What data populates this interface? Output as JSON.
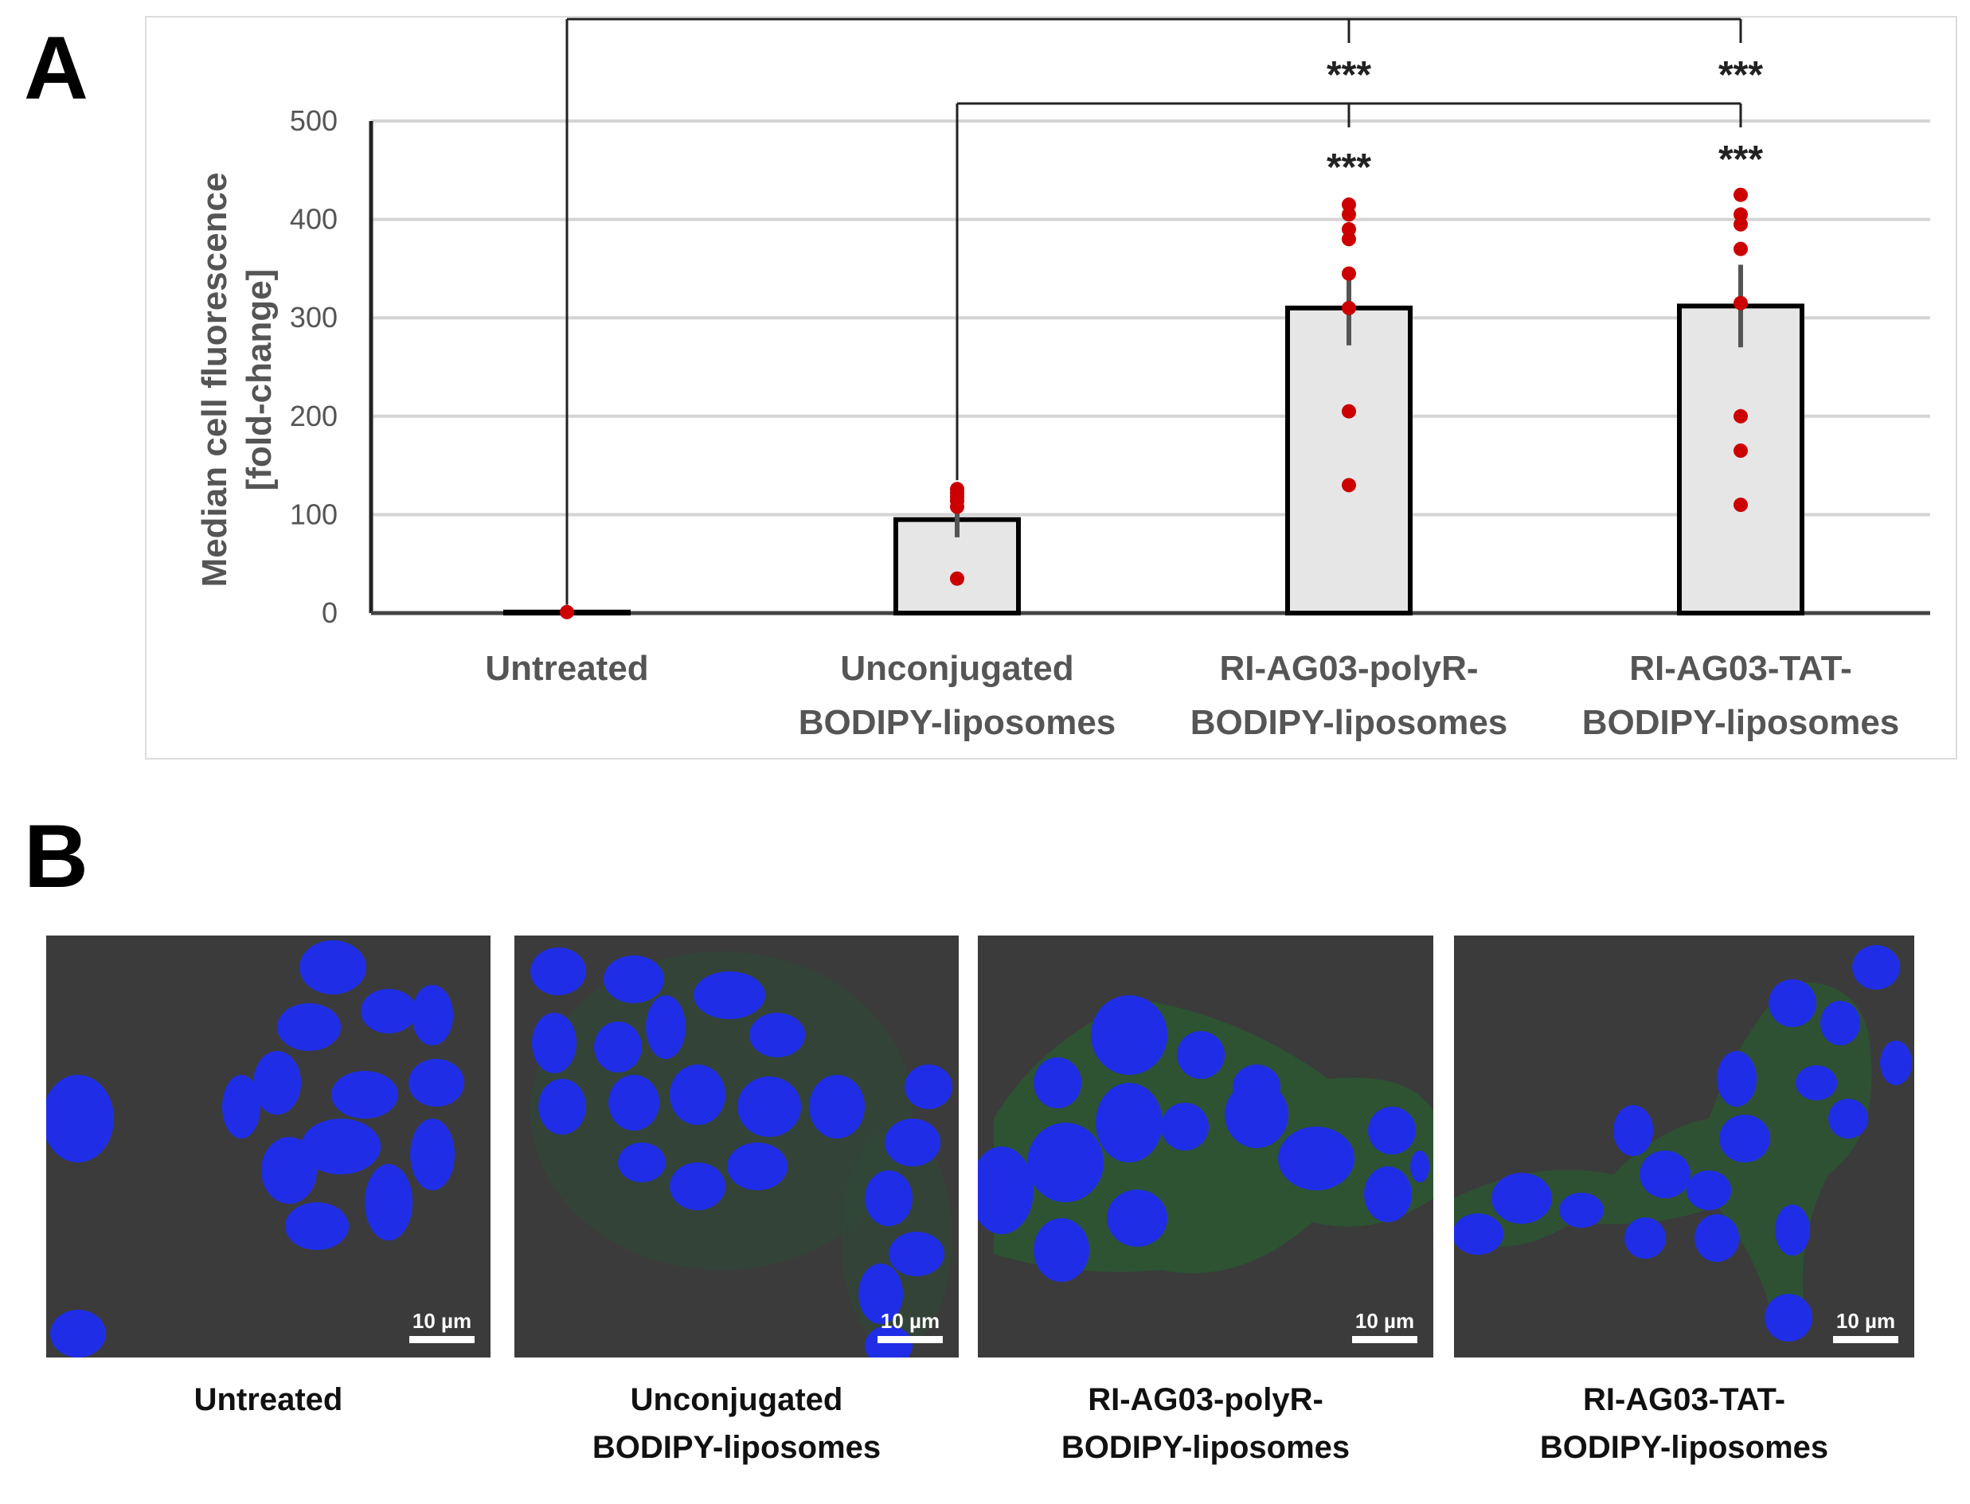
{
  "panels": {
    "a_label": "A",
    "b_label": "B"
  },
  "chart_data": {
    "type": "bar",
    "ylabel_lines": [
      "Median cell fluorescence",
      "[fold-change]"
    ],
    "ylim": [
      0,
      500
    ],
    "yticks": [
      0,
      100,
      200,
      300,
      400,
      500
    ],
    "grid": true,
    "categories": [
      [
        "Untreated"
      ],
      [
        "Unconjugated",
        "BODIPY-liposomes"
      ],
      [
        "RI-AG03-polyR-",
        "BODIPY-liposomes"
      ],
      [
        "RI-AG03-TAT-",
        "BODIPY-liposomes"
      ]
    ],
    "values": [
      1,
      95,
      310,
      312
    ],
    "errors": [
      0,
      18,
      38,
      42
    ],
    "points": [
      [
        1
      ],
      [
        35,
        108,
        114,
        118,
        122,
        126
      ],
      [
        130,
        205,
        310,
        345,
        380,
        390,
        405,
        415
      ],
      [
        110,
        165,
        200,
        315,
        370,
        395,
        405,
        425
      ]
    ],
    "bar_fill": "#e6e6e6",
    "bar_edge": "#000000",
    "point_color": "#cc0000",
    "error_color": "#555555",
    "significance": [
      {
        "from": 0,
        "to": 2,
        "label": "***"
      },
      {
        "from": 0,
        "to": 3,
        "label": "***"
      },
      {
        "from": 1,
        "to": 2,
        "label": "***"
      },
      {
        "from": 1,
        "to": 3,
        "label": "***"
      }
    ]
  },
  "micrographs": [
    {
      "lines": [
        "Untreated"
      ],
      "scale": "10 µm"
    },
    {
      "lines": [
        "Unconjugated",
        "BODIPY-liposomes"
      ],
      "scale": "10 µm"
    },
    {
      "lines": [
        "RI-AG03-polyR-",
        "BODIPY-liposomes"
      ],
      "scale": "10 µm"
    },
    {
      "lines": [
        "RI-AG03-TAT-",
        "BODIPY-liposomes"
      ],
      "scale": "10 µm"
    }
  ]
}
